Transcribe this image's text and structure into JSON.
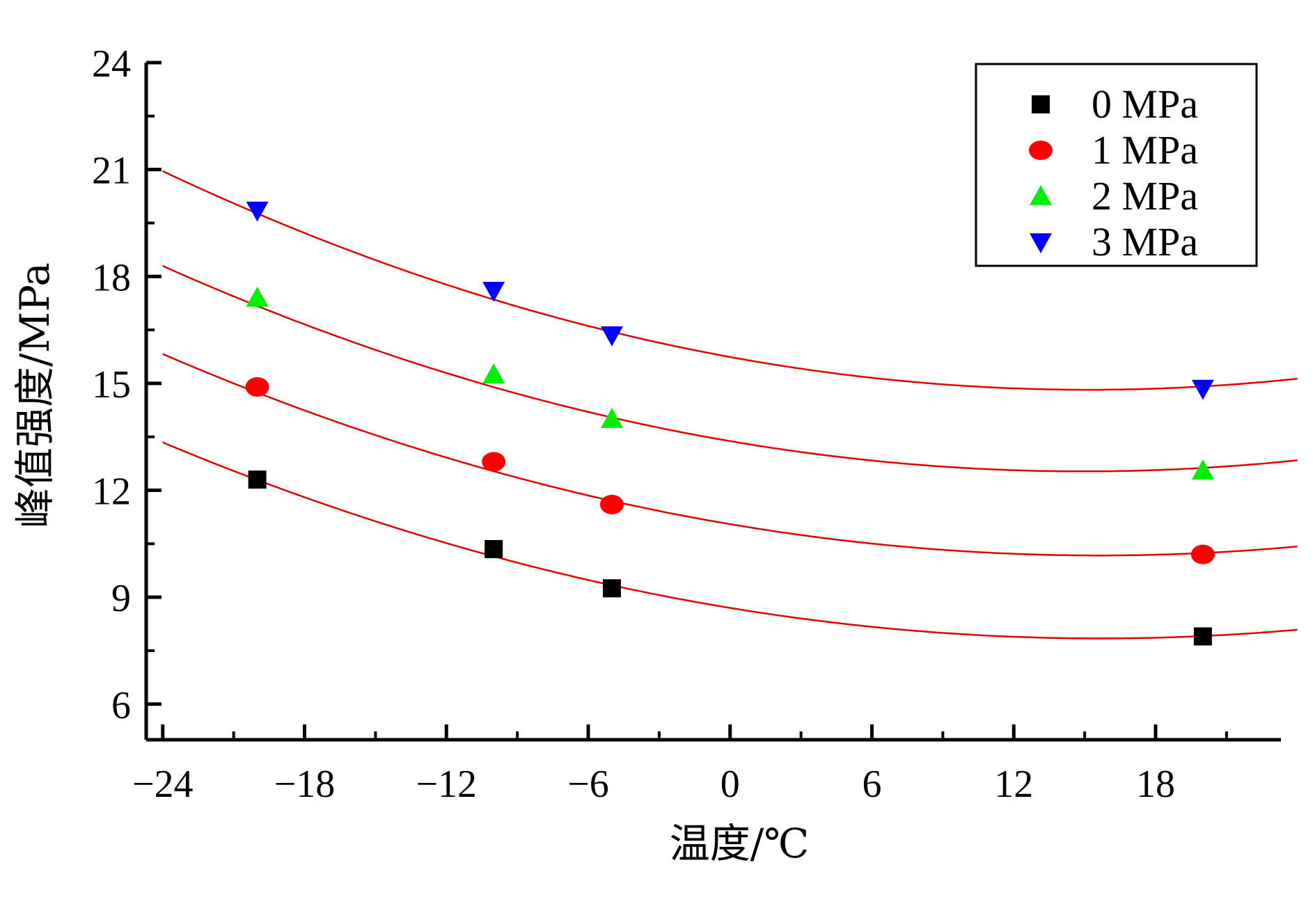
{
  "chart_data": {
    "type": "scatter",
    "title": "",
    "xlabel": "温度/℃",
    "ylabel": "峰值强度/MPa",
    "xlim": [
      -24.7,
      23.3
    ],
    "ylim": [
      5,
      24
    ],
    "x_ticks": [
      -24,
      -18,
      -12,
      -6,
      0,
      6,
      12,
      18
    ],
    "x_tick_labels": [
      "−24",
      "−18",
      "−12",
      "−6",
      "0",
      "6",
      "12",
      "18"
    ],
    "y_ticks": [
      6,
      9,
      12,
      15,
      18,
      21,
      24
    ],
    "y_tick_labels": [
      "6",
      "9",
      "12",
      "15",
      "18",
      "21",
      "24"
    ],
    "grid": false,
    "legend_position": "top-right",
    "fit_x_range": [
      -24,
      24
    ],
    "series": [
      {
        "name": "0 MPa",
        "marker": "square",
        "color": "#000000",
        "points": [
          [
            -20,
            12.3
          ],
          [
            -10,
            10.35
          ],
          [
            -5,
            9.25
          ],
          [
            20,
            7.9
          ]
        ],
        "fit_color": "#e00000",
        "fit_coefficients": [
          8.7,
          -0.1095,
          0.0035
        ]
      },
      {
        "name": "1 MPa",
        "marker": "circle",
        "color": "#ff0000",
        "points": [
          [
            -20,
            14.9
          ],
          [
            -10,
            12.8
          ],
          [
            -5,
            11.6
          ],
          [
            20,
            10.2
          ]
        ],
        "fit_color": "#e00000",
        "fit_coefficients": [
          11.05,
          -0.1125,
          0.0036
        ]
      },
      {
        "name": "2 MPa",
        "marker": "triangle-up",
        "color": "#00ee00",
        "points": [
          [
            -20,
            17.4
          ],
          [
            -10,
            15.25
          ],
          [
            -5,
            14.0
          ],
          [
            20,
            12.55
          ]
        ],
        "fit_color": "#e00000",
        "fit_coefficients": [
          13.38,
          -0.1136,
          0.0038
        ]
      },
      {
        "name": "3 MPa",
        "marker": "triangle-down",
        "color": "#0000ff",
        "points": [
          [
            -20,
            19.85
          ],
          [
            -10,
            17.6
          ],
          [
            -5,
            16.35
          ],
          [
            20,
            14.85
          ]
        ],
        "fit_color": "#e00000",
        "fit_coefficients": [
          15.74,
          -0.1213,
          0.004
        ]
      }
    ]
  }
}
